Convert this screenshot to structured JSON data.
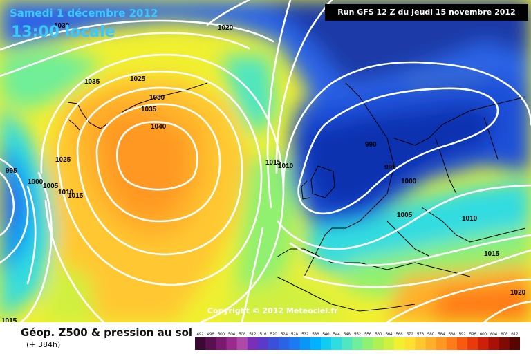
{
  "header": {
    "date": "Samedi 1 décembre 2012",
    "local_time": "13:00 locale",
    "run": "Run GFS 12 Z du Jeudi 15 novembre 2012"
  },
  "copyright": "Copyright © 2012 Meteociel.fr",
  "legend": {
    "title": "Géop. Z500 & pression au sol",
    "subtitle": "(+ 384h)",
    "values": [
      "492",
      "496",
      "500",
      "504",
      "508",
      "512",
      "516",
      "520",
      "524",
      "528",
      "532",
      "536",
      "540",
      "544",
      "548",
      "552",
      "556",
      "560",
      "564",
      "568",
      "572",
      "576",
      "580",
      "584",
      "588",
      "592",
      "596",
      "600",
      "604",
      "608",
      "612"
    ],
    "colors": [
      "#3b0a33",
      "#5a0f50",
      "#7a1a6e",
      "#9a2a8c",
      "#b048a8",
      "#7a2fb8",
      "#5a3ac8",
      "#3a50d8",
      "#2a64e6",
      "#1a7cf0",
      "#0a96f6",
      "#00b2ff",
      "#10ccf0",
      "#30dce0",
      "#50e6c0",
      "#70ee98",
      "#90f070",
      "#b0f050",
      "#d0f040",
      "#f0f030",
      "#ffe030",
      "#ffc830",
      "#ffb02a",
      "#ff9820",
      "#ff7c18",
      "#f85a10",
      "#e83a0a",
      "#cc2008",
      "#a81206",
      "#800a04",
      "#580402"
    ]
  },
  "isobar_labels": [
    "1030",
    "1020",
    "1035",
    "1025",
    "1030",
    "1035",
    "1040",
    "995",
    "1000",
    "1005",
    "1010",
    "1015",
    "1025",
    "1015",
    "1010",
    "990",
    "995",
    "1000",
    "1005",
    "1010",
    "1015",
    "1020",
    "1015"
  ],
  "colors": {
    "title": "#39c8ff",
    "isobar": "#ffffff",
    "coast": "#000000"
  }
}
